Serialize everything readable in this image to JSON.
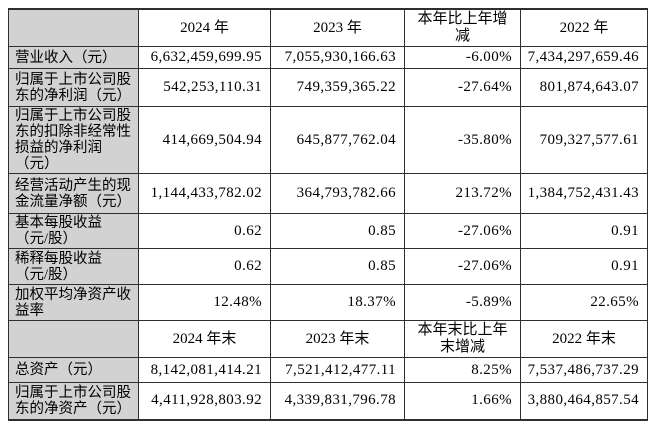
{
  "colors": {
    "label_column_bg": "#d2d2d2",
    "border": "#2f2f2f",
    "text": "#000000",
    "page_bg": "#ffffff"
  },
  "table": {
    "period_header": [
      "",
      "2024 年",
      "2023 年",
      "本年比上年增减",
      "2022 年"
    ],
    "period_rows": [
      {
        "label": "营业收入（元）",
        "values": [
          "6,632,459,699.95",
          "7,055,930,166.63",
          "-6.00%",
          "7,434,297,659.46"
        ]
      },
      {
        "label": "归属于上市公司股东的净利润（元）",
        "values": [
          "542,253,110.31",
          "749,359,365.22",
          "-27.64%",
          "801,874,643.07"
        ]
      },
      {
        "label": "归属于上市公司股东的扣除非经常性损益的净利润（元）",
        "values": [
          "414,669,504.94",
          "645,877,762.04",
          "-35.80%",
          "709,327,577.61"
        ]
      },
      {
        "label": "经营活动产生的现金流量净额（元）",
        "values": [
          "1,144,433,782.02",
          "364,793,782.66",
          "213.72%",
          "1,384,752,431.43"
        ]
      },
      {
        "label": "基本每股收益（元/股）",
        "values": [
          "0.62",
          "0.85",
          "-27.06%",
          "0.91"
        ]
      },
      {
        "label": "稀释每股收益（元/股）",
        "values": [
          "0.62",
          "0.85",
          "-27.06%",
          "0.91"
        ]
      },
      {
        "label": "加权平均净资产收益率",
        "values": [
          "12.48%",
          "18.37%",
          "-5.89%",
          "22.65%"
        ]
      }
    ],
    "eop_header": [
      "",
      "2024 年末",
      "2023 年末",
      "本年末比上年末增减",
      "2022 年末"
    ],
    "eop_rows": [
      {
        "label": "总资产（元）",
        "values": [
          "8,142,081,414.21",
          "7,521,412,477.11",
          "8.25%",
          "7,537,486,737.29"
        ]
      },
      {
        "label": "归属于上市公司股东的净资产（元）",
        "values": [
          "4,411,928,803.92",
          "4,339,831,796.78",
          "1.66%",
          "3,880,464,857.54"
        ]
      }
    ]
  }
}
